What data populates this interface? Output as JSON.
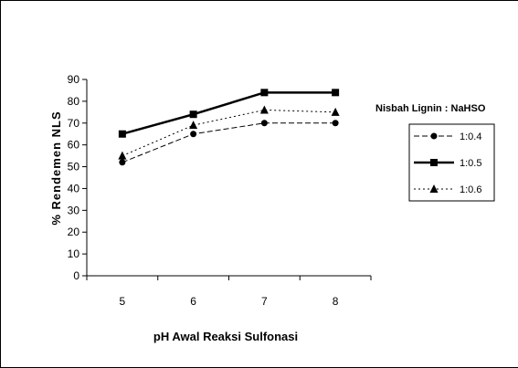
{
  "chart_data": {
    "type": "line",
    "xlabel": "pH Awal Reaksi Sulfonasi",
    "ylabel": "% Rendemen NLS",
    "x": [
      5,
      6,
      7,
      8
    ],
    "ylim": [
      0,
      90
    ],
    "yticks": [
      0,
      10,
      20,
      30,
      40,
      50,
      60,
      70,
      80,
      90
    ],
    "legend_title": "Nisbah Lignin : NaHSO",
    "series": [
      {
        "name": "1:0.4",
        "values": [
          52,
          65,
          70,
          70
        ],
        "marker": "circle",
        "line": "dashed",
        "stroke_width": 1
      },
      {
        "name": "1:0.5",
        "values": [
          65,
          74,
          84,
          84
        ],
        "marker": "square",
        "line": "solid",
        "stroke_width": 2.5
      },
      {
        "name": "1:0.6",
        "values": [
          55,
          69,
          76,
          75
        ],
        "marker": "triangle",
        "line": "dotted",
        "stroke_width": 1
      }
    ],
    "grid": false,
    "legend_position": "right"
  }
}
